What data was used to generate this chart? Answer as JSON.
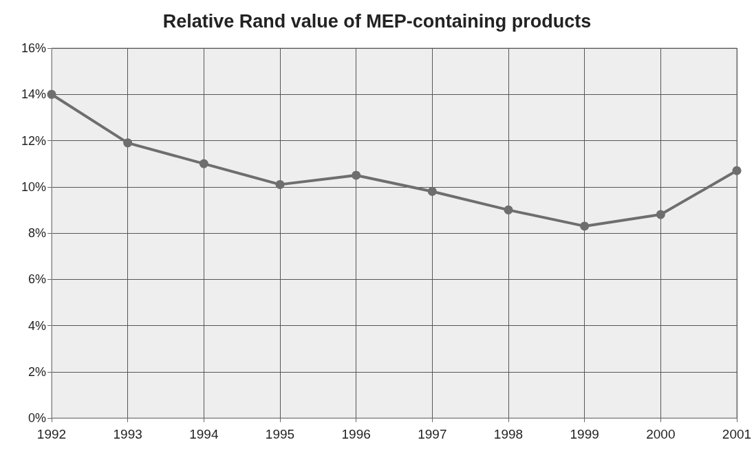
{
  "chart_data": {
    "type": "line",
    "title": "Relative Rand value of MEP-containing products",
    "categories": [
      "1992",
      "1993",
      "1994",
      "1995",
      "1996",
      "1997",
      "1998",
      "1999",
      "2000",
      "2001"
    ],
    "series": [
      {
        "color": "#6e6e6e",
        "values": [
          14.0,
          11.9,
          11.0,
          10.1,
          10.5,
          9.8,
          9.0,
          8.3,
          8.8,
          10.7
        ]
      }
    ],
    "ylim": [
      0,
      16
    ],
    "yticks": [
      {
        "value": 0,
        "label": "0%"
      },
      {
        "value": 2,
        "label": "2%"
      },
      {
        "value": 4,
        "label": "4%"
      },
      {
        "value": 6,
        "label": "6%"
      },
      {
        "value": 8,
        "label": "8%"
      },
      {
        "value": 10,
        "label": "10%"
      },
      {
        "value": 12,
        "label": "12%"
      },
      {
        "value": 14,
        "label": "14%"
      },
      {
        "value": 16,
        "label": "16%"
      }
    ],
    "grid": true,
    "marker": "circle",
    "line_style": "solid"
  }
}
